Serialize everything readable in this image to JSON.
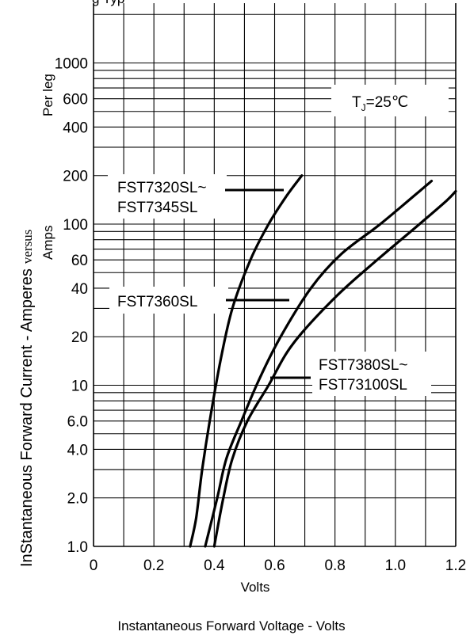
{
  "chart_data": {
    "type": "line",
    "title": "",
    "top_text": "g   Typ",
    "xlabel": "Volts",
    "caption": "Instantaneous Forward Voltage - Volts",
    "ylabel_main": "InStantaneous Forward Current - Amperes",
    "ylabel_versus": "versus",
    "ylabel_perleg": "Per leg",
    "ylabel_amps": "Amps",
    "xlim": [
      0,
      1.2
    ],
    "ylim": [
      1.0,
      2000
    ],
    "y_scale": "log",
    "grid": true,
    "x_ticks": [
      {
        "v": 0,
        "label": "0"
      },
      {
        "v": 0.2,
        "label": "0.2"
      },
      {
        "v": 0.4,
        "label": "0.4"
      },
      {
        "v": 0.6,
        "label": "0.6"
      },
      {
        "v": 0.8,
        "label": "0.8"
      },
      {
        "v": 1.0,
        "label": "1.0"
      },
      {
        "v": 1.2,
        "label": "1.2"
      }
    ],
    "y_ticks": [
      {
        "v": 1.0,
        "label": "1.0"
      },
      {
        "v": 2.0,
        "label": "2.0"
      },
      {
        "v": 4.0,
        "label": "4.0"
      },
      {
        "v": 6.0,
        "label": "6.0"
      },
      {
        "v": 10,
        "label": "10"
      },
      {
        "v": 20,
        "label": "20"
      },
      {
        "v": 40,
        "label": "40"
      },
      {
        "v": 60,
        "label": "60"
      },
      {
        "v": 100,
        "label": "100"
      },
      {
        "v": 200,
        "label": "200"
      },
      {
        "v": 400,
        "label": "400"
      },
      {
        "v": 600,
        "label": "600"
      },
      {
        "v": 1000,
        "label": "1000"
      }
    ],
    "annotation": {
      "tj_base": "T",
      "tj_sub": "J",
      "tj_rest": "=25℃"
    },
    "series": [
      {
        "name": "FST7320SL~ FST7345SL",
        "label_lines": [
          "FST7320SL~",
          "FST7345SL"
        ],
        "points": [
          [
            0.32,
            1.0
          ],
          [
            0.34,
            1.5
          ],
          [
            0.36,
            3.0
          ],
          [
            0.385,
            6.0
          ],
          [
            0.42,
            14
          ],
          [
            0.46,
            30
          ],
          [
            0.52,
            60
          ],
          [
            0.58,
            100
          ],
          [
            0.64,
            150
          ],
          [
            0.69,
            200
          ]
        ]
      },
      {
        "name": "FST7360SL",
        "label_lines": [
          "FST7360SL"
        ],
        "points": [
          [
            0.37,
            1.0
          ],
          [
            0.41,
            2.0
          ],
          [
            0.44,
            3.5
          ],
          [
            0.49,
            6.0
          ],
          [
            0.55,
            11
          ],
          [
            0.62,
            20
          ],
          [
            0.72,
            40
          ],
          [
            0.82,
            65
          ],
          [
            0.95,
            100
          ],
          [
            1.08,
            160
          ],
          [
            1.12,
            185
          ]
        ]
      },
      {
        "name": "FST7380SL~ FST73100SL",
        "label_lines": [
          "FST7380SL~",
          "FST73100SL"
        ],
        "points": [
          [
            0.4,
            1.0
          ],
          [
            0.43,
            2.0
          ],
          [
            0.46,
            3.5
          ],
          [
            0.51,
            6.0
          ],
          [
            0.58,
            10
          ],
          [
            0.66,
            18
          ],
          [
            0.8,
            35
          ],
          [
            0.94,
            60
          ],
          [
            1.08,
            100
          ],
          [
            1.17,
            140
          ],
          [
            1.2,
            160
          ]
        ]
      }
    ]
  }
}
